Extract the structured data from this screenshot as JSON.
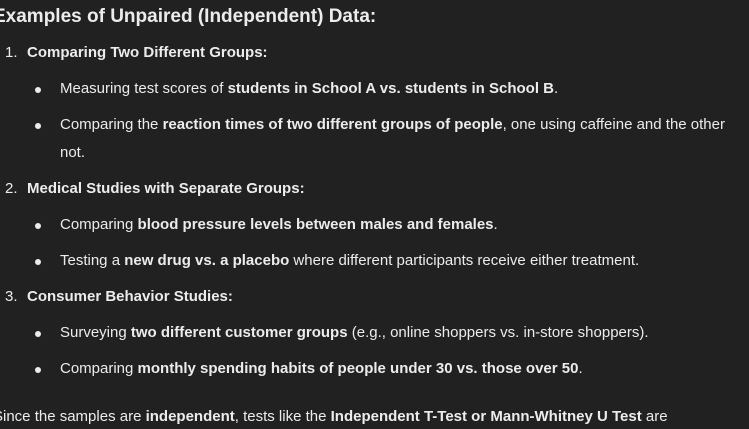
{
  "heading": "Examples of Unpaired (Independent) Data:",
  "sections": [
    {
      "number": "1.",
      "title": "Comparing Two Different Groups:",
      "bullets": [
        {
          "parts": [
            "Measuring test scores of ",
            "students in School A vs. students in School B",
            "."
          ]
        },
        {
          "parts": [
            "Comparing the ",
            "reaction times of two different groups of people",
            ", one using caffeine and the other not."
          ]
        }
      ]
    },
    {
      "number": "2.",
      "title": "Medical Studies with Separate Groups:",
      "bullets": [
        {
          "parts": [
            "Comparing ",
            "blood pressure levels between males and females",
            "."
          ]
        },
        {
          "parts": [
            "Testing a ",
            "new drug vs. a placebo",
            " where different participants receive either treatment."
          ]
        }
      ]
    },
    {
      "number": "3.",
      "title": "Consumer Behavior Studies:",
      "bullets": [
        {
          "parts": [
            "Surveying ",
            "two different customer groups",
            " (e.g., online shoppers vs. in-store shoppers)."
          ]
        },
        {
          "parts": [
            "Comparing ",
            "monthly spending habits of people under 30 vs. those over 50",
            "."
          ]
        }
      ]
    }
  ],
  "footer": {
    "parts": [
      "Since the samples are ",
      "independent",
      ", tests like the ",
      "Independent T-Test or Mann-Whitney U Test",
      " are"
    ]
  }
}
